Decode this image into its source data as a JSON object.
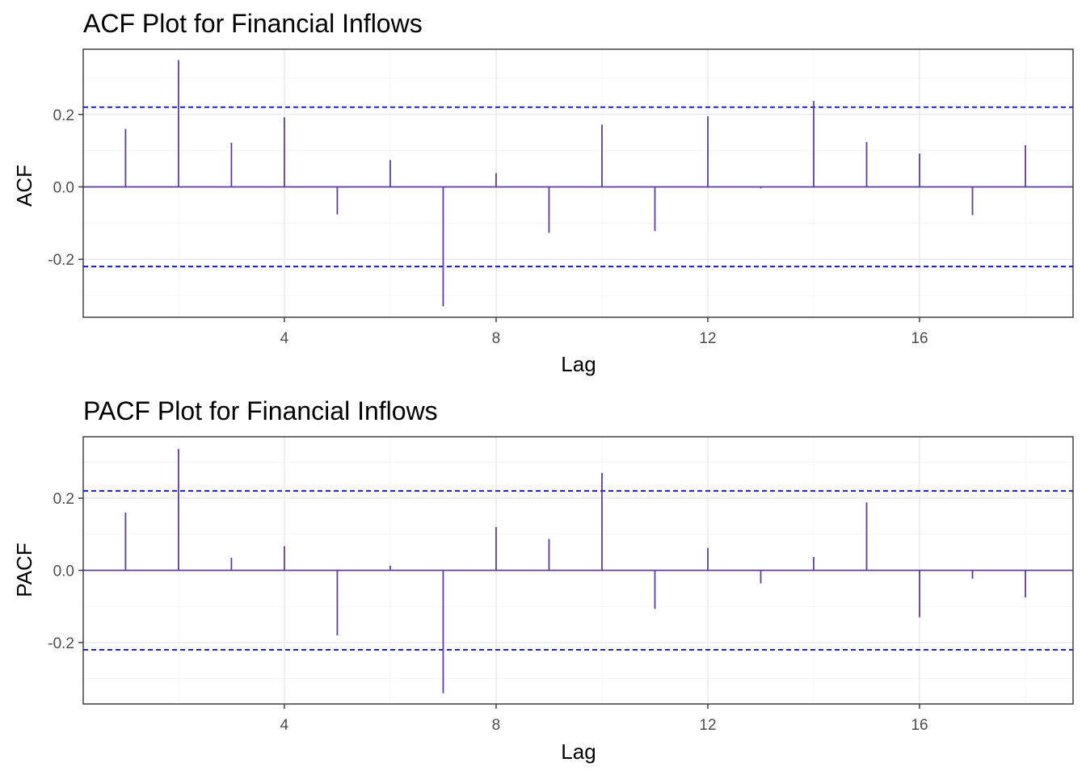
{
  "colors": {
    "spike": "#5e3c99",
    "ci_line": "#0000cc"
  },
  "chart_data": [
    {
      "type": "bar",
      "title": "ACF Plot for Financial Inflows",
      "xlabel": "Lag",
      "ylabel": "ACF",
      "x": [
        1,
        2,
        3,
        4,
        5,
        6,
        7,
        8,
        9,
        10,
        11,
        12,
        13,
        14,
        15,
        16,
        17,
        18
      ],
      "values": [
        0.16,
        0.35,
        0.122,
        0.192,
        -0.076,
        0.074,
        -0.33,
        0.038,
        -0.127,
        0.172,
        -0.122,
        0.195,
        -0.004,
        0.237,
        0.124,
        0.092,
        -0.078,
        0.115
      ],
      "confidence_bounds": [
        -0.22,
        0.22
      ],
      "xlim": [
        0.2,
        18.9
      ],
      "ylim": [
        -0.36,
        0.38
      ],
      "x_ticks": [
        4,
        8,
        12,
        16
      ],
      "x_tick_labels": [
        "4",
        "8",
        "12",
        "16"
      ],
      "y_ticks": [
        -0.2,
        0.0,
        0.2
      ],
      "y_tick_labels": [
        "-0.2",
        "0.0",
        "0.2"
      ],
      "grid": true
    },
    {
      "type": "bar",
      "title": "PACF Plot for Financial Inflows",
      "xlabel": "Lag",
      "ylabel": "PACF",
      "x": [
        1,
        2,
        3,
        4,
        5,
        6,
        7,
        8,
        9,
        10,
        11,
        12,
        13,
        14,
        15,
        16,
        17,
        18
      ],
      "values": [
        0.16,
        0.336,
        0.035,
        0.067,
        -0.18,
        0.013,
        -0.34,
        0.12,
        0.087,
        0.27,
        -0.107,
        0.062,
        -0.036,
        0.037,
        0.188,
        -0.13,
        -0.023,
        -0.075
      ],
      "confidence_bounds": [
        -0.22,
        0.22
      ],
      "xlim": [
        0.2,
        18.9
      ],
      "ylim": [
        -0.37,
        0.37
      ],
      "x_ticks": [
        4,
        8,
        12,
        16
      ],
      "x_tick_labels": [
        "4",
        "8",
        "12",
        "16"
      ],
      "y_ticks": [
        -0.2,
        0.0,
        0.2
      ],
      "y_tick_labels": [
        "-0.2",
        "0.0",
        "0.2"
      ],
      "grid": true
    }
  ]
}
